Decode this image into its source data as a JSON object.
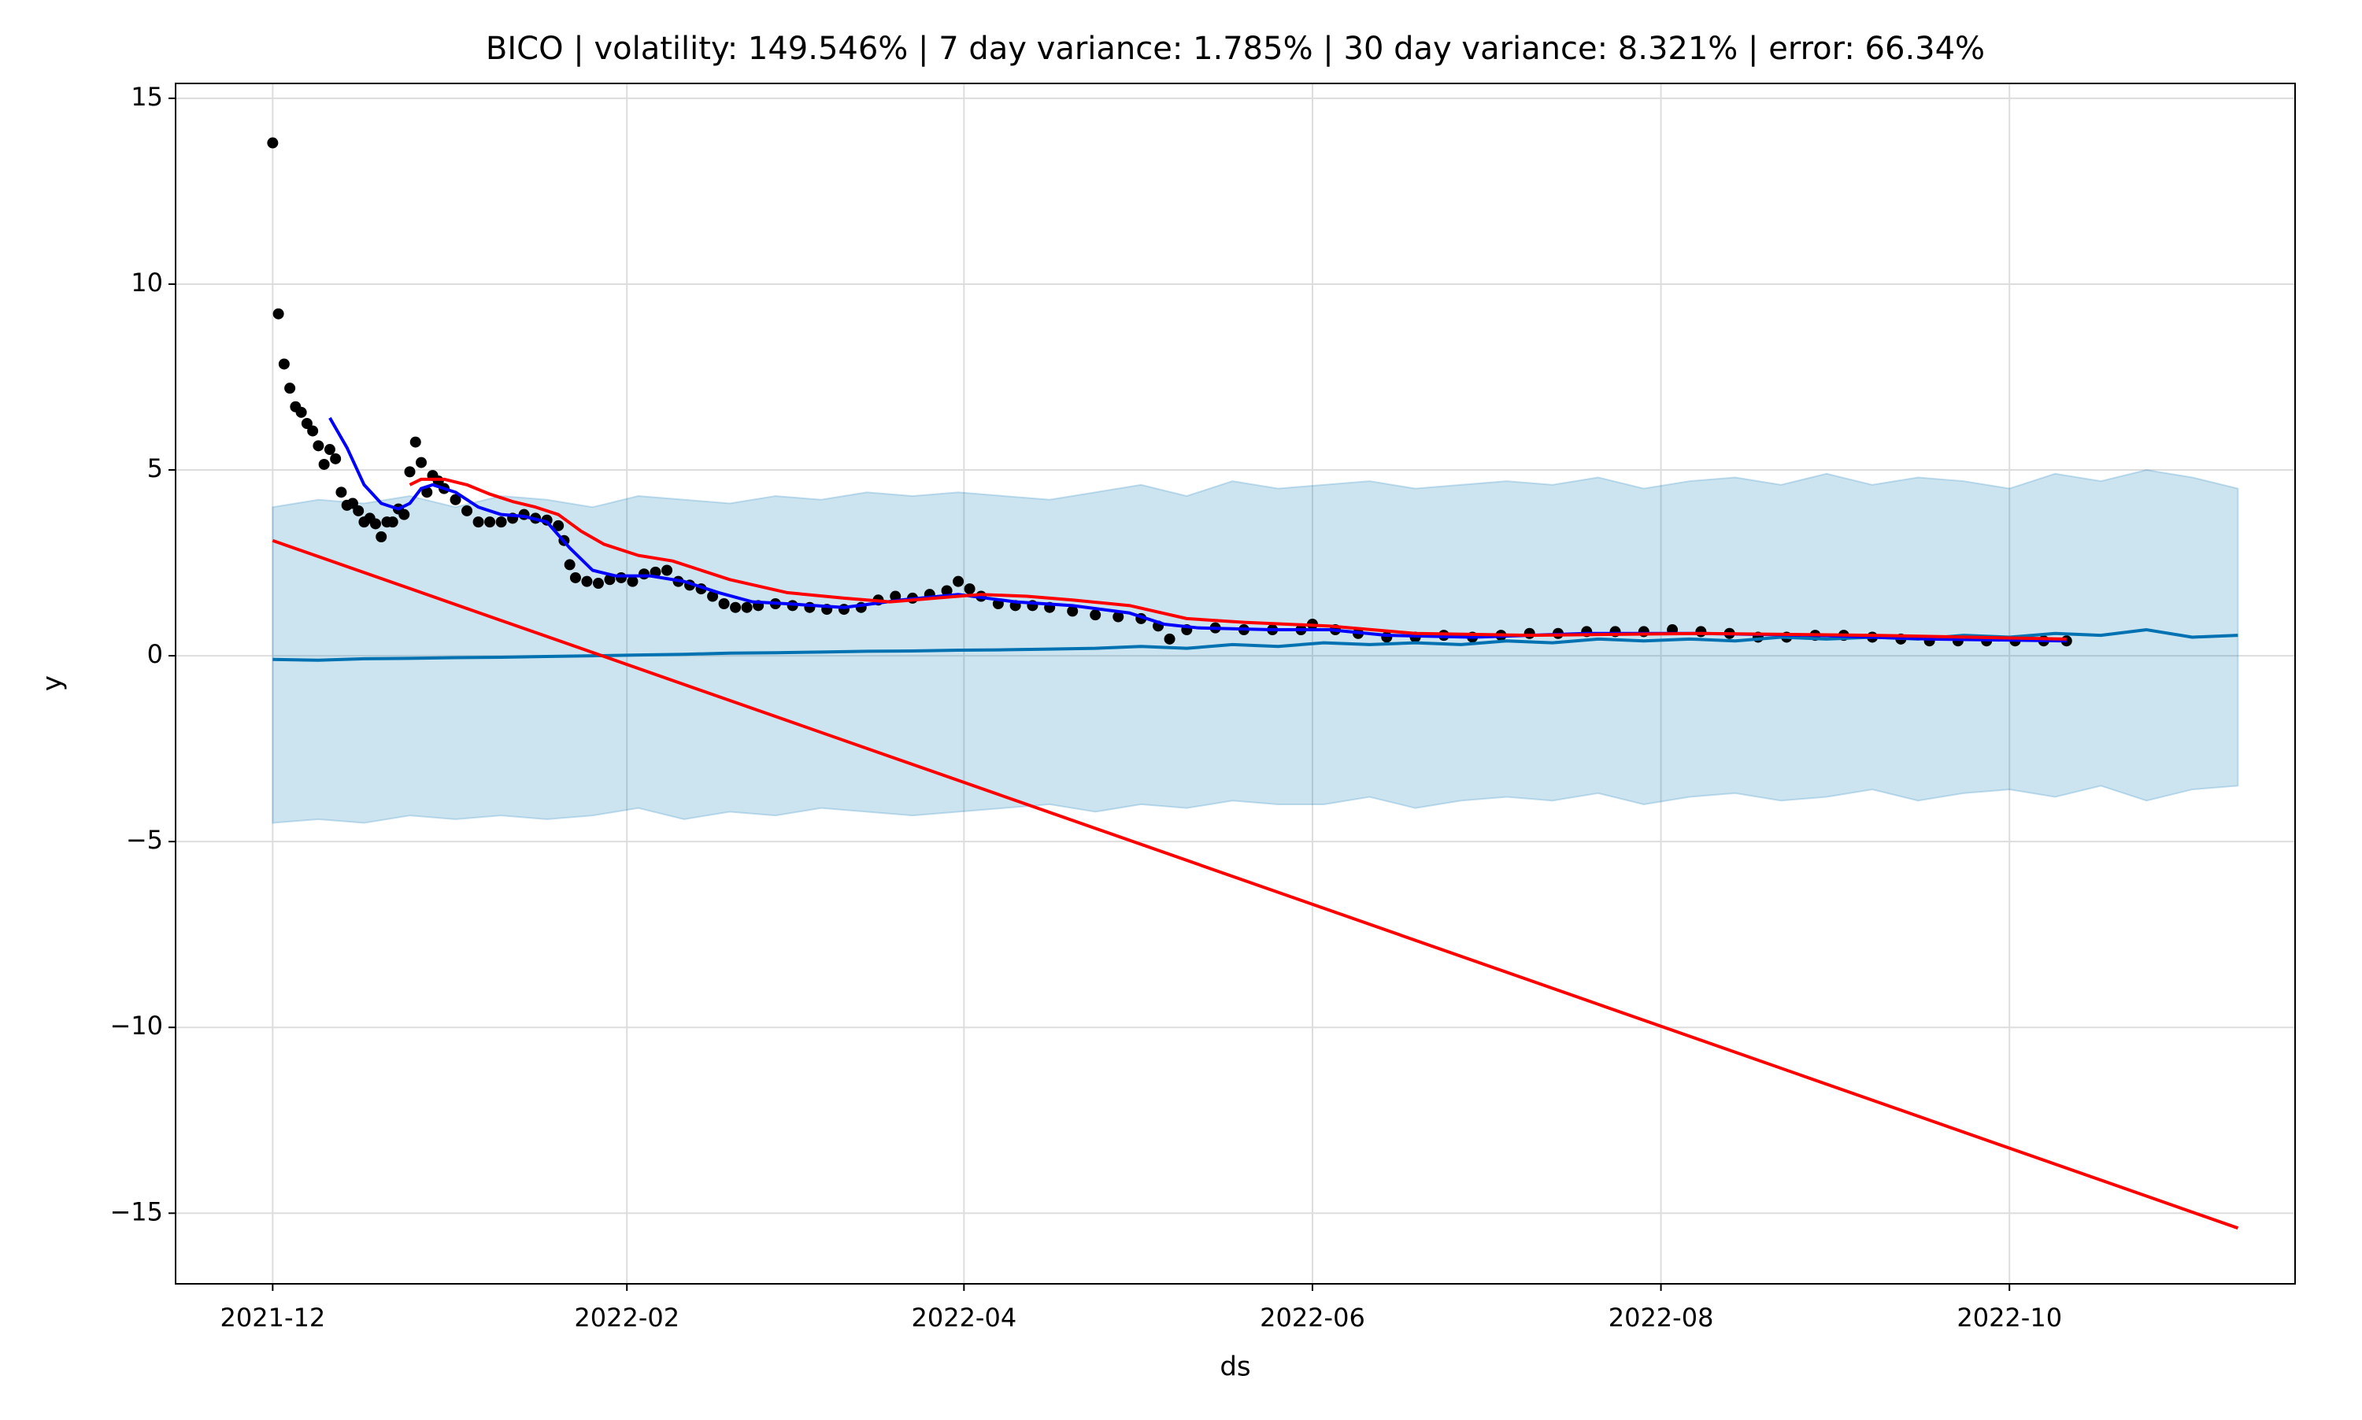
{
  "chart_data": {
    "type": "forecast",
    "title": "BICO | volatility: 149.546% | 7 day variance: 1.785% | 30 day variance: 8.321% | error: 66.34%",
    "x_label": "ds",
    "y_label": "y",
    "xlim": [
      -17,
      354
    ],
    "ylim": [
      -16.9,
      15.4
    ],
    "xticks": [
      {
        "value": 0,
        "label": "2021-12"
      },
      {
        "value": 62,
        "label": "2022-02"
      },
      {
        "value": 121,
        "label": "2022-04"
      },
      {
        "value": 182,
        "label": "2022-06"
      },
      {
        "value": 243,
        "label": "2022-08"
      },
      {
        "value": 304,
        "label": "2022-10"
      }
    ],
    "yticks": [
      {
        "value": -15,
        "label": "−15"
      },
      {
        "value": -10,
        "label": "−10"
      },
      {
        "value": -5,
        "label": "−5"
      },
      0,
      5,
      10,
      15
    ],
    "grid": true,
    "series": [
      {
        "type": "band",
        "color": "#0072B2",
        "x": [
          0,
          8,
          16,
          24,
          32,
          40,
          48,
          56,
          64,
          72,
          80,
          88,
          96,
          104,
          112,
          120,
          128,
          136,
          144,
          152,
          160,
          168,
          176,
          184,
          192,
          200,
          208,
          216,
          224,
          232,
          240,
          248,
          256,
          264,
          272,
          280,
          288,
          296,
          304,
          312,
          320,
          328,
          336,
          344
        ],
        "lower": [
          -4.5,
          -4.4,
          -4.5,
          -4.3,
          -4.4,
          -4.3,
          -4.4,
          -4.3,
          -4.1,
          -4.4,
          -4.2,
          -4.3,
          -4.1,
          -4.2,
          -4.3,
          -4.2,
          -4.1,
          -4.0,
          -4.2,
          -4.0,
          -4.1,
          -3.9,
          -4.0,
          -4.0,
          -3.8,
          -4.1,
          -3.9,
          -3.8,
          -3.9,
          -3.7,
          -4.0,
          -3.8,
          -3.7,
          -3.9,
          -3.8,
          -3.6,
          -3.9,
          -3.7,
          -3.6,
          -3.8,
          -3.5,
          -3.9,
          -3.6,
          -3.5
        ],
        "upper": [
          4.0,
          4.2,
          4.1,
          4.3,
          4.0,
          4.3,
          4.2,
          4.0,
          4.3,
          4.2,
          4.1,
          4.3,
          4.2,
          4.4,
          4.3,
          4.4,
          4.3,
          4.2,
          4.4,
          4.6,
          4.3,
          4.7,
          4.5,
          4.6,
          4.7,
          4.5,
          4.6,
          4.7,
          4.6,
          4.8,
          4.5,
          4.7,
          4.8,
          4.6,
          4.9,
          4.6,
          4.8,
          4.7,
          4.5,
          4.9,
          4.7,
          5.0,
          4.8,
          4.5
        ]
      },
      {
        "type": "line",
        "color": "#0072B2",
        "x": [
          0,
          8,
          16,
          24,
          32,
          40,
          48,
          56,
          64,
          72,
          80,
          88,
          96,
          104,
          112,
          120,
          128,
          136,
          144,
          152,
          160,
          168,
          176,
          184,
          192,
          200,
          208,
          216,
          224,
          232,
          240,
          248,
          256,
          264,
          272,
          280,
          288,
          296,
          304,
          312,
          320,
          328,
          336,
          344
        ],
        "values": [
          -0.1,
          -0.12,
          -0.08,
          -0.07,
          -0.05,
          -0.04,
          -0.02,
          0.0,
          0.02,
          0.04,
          0.07,
          0.08,
          0.1,
          0.12,
          0.13,
          0.15,
          0.16,
          0.18,
          0.2,
          0.25,
          0.2,
          0.3,
          0.25,
          0.35,
          0.3,
          0.35,
          0.3,
          0.4,
          0.35,
          0.45,
          0.4,
          0.45,
          0.4,
          0.5,
          0.45,
          0.5,
          0.45,
          0.55,
          0.5,
          0.6,
          0.55,
          0.7,
          0.5,
          0.55
        ]
      },
      {
        "type": "scatter",
        "color": "#000000",
        "x": [
          0,
          1,
          2,
          3,
          4,
          5,
          6,
          7,
          8,
          9,
          10,
          11,
          12,
          13,
          14,
          15,
          16,
          17,
          18,
          19,
          20,
          21,
          22,
          23,
          24,
          25,
          26,
          27,
          28,
          29,
          30,
          32,
          34,
          36,
          38,
          40,
          42,
          44,
          46,
          48,
          50,
          51,
          52,
          53,
          55,
          57,
          59,
          61,
          63,
          65,
          67,
          69,
          71,
          73,
          75,
          77,
          79,
          81,
          83,
          85,
          88,
          91,
          94,
          97,
          100,
          103,
          106,
          109,
          112,
          115,
          118,
          120,
          122,
          124,
          127,
          130,
          133,
          136,
          140,
          144,
          148,
          152,
          155,
          157,
          160,
          165,
          170,
          175,
          180,
          182,
          186,
          190,
          195,
          200,
          205,
          210,
          215,
          220,
          225,
          230,
          235,
          240,
          245,
          250,
          255,
          260,
          265,
          270,
          275,
          280,
          285,
          290,
          295,
          300,
          305,
          310,
          314
        ],
        "values": [
          13.8,
          9.2,
          7.85,
          7.2,
          6.7,
          6.55,
          6.25,
          6.05,
          5.65,
          5.15,
          5.55,
          5.3,
          4.4,
          4.05,
          4.1,
          3.9,
          3.6,
          3.7,
          3.55,
          3.2,
          3.6,
          3.6,
          3.95,
          3.8,
          4.95,
          5.75,
          5.2,
          4.4,
          4.85,
          4.7,
          4.5,
          4.2,
          3.9,
          3.6,
          3.6,
          3.6,
          3.7,
          3.8,
          3.7,
          3.65,
          3.5,
          3.1,
          2.45,
          2.1,
          2.0,
          1.95,
          2.05,
          2.1,
          2.0,
          2.2,
          2.25,
          2.3,
          2.0,
          1.9,
          1.8,
          1.6,
          1.4,
          1.3,
          1.3,
          1.35,
          1.4,
          1.35,
          1.3,
          1.25,
          1.25,
          1.3,
          1.5,
          1.6,
          1.55,
          1.65,
          1.75,
          2.0,
          1.8,
          1.6,
          1.4,
          1.35,
          1.35,
          1.3,
          1.2,
          1.1,
          1.05,
          1.0,
          0.8,
          0.45,
          0.7,
          0.75,
          0.7,
          0.7,
          0.7,
          0.85,
          0.7,
          0.6,
          0.5,
          0.5,
          0.55,
          0.5,
          0.55,
          0.6,
          0.6,
          0.65,
          0.65,
          0.65,
          0.7,
          0.65,
          0.6,
          0.5,
          0.5,
          0.55,
          0.55,
          0.5,
          0.45,
          0.4,
          0.4,
          0.4,
          0.4,
          0.4,
          0.4
        ]
      },
      {
        "type": "line",
        "color": "#0000ff",
        "x": [
          10,
          13,
          16,
          19,
          22,
          24,
          26,
          28,
          32,
          36,
          40,
          44,
          48,
          52,
          56,
          60,
          66,
          72,
          78,
          84,
          90,
          100,
          110,
          120,
          130,
          140,
          150,
          156,
          162,
          175,
          185,
          195,
          210,
          230,
          250,
          270,
          290,
          314
        ],
        "values": [
          6.4,
          5.6,
          4.6,
          4.1,
          3.95,
          4.1,
          4.5,
          4.6,
          4.4,
          4.0,
          3.8,
          3.75,
          3.6,
          2.9,
          2.3,
          2.15,
          2.15,
          2.0,
          1.7,
          1.45,
          1.4,
          1.3,
          1.5,
          1.65,
          1.45,
          1.35,
          1.15,
          0.85,
          0.75,
          0.7,
          0.7,
          0.55,
          0.5,
          0.6,
          0.6,
          0.55,
          0.45,
          0.4
        ]
      },
      {
        "type": "line",
        "color": "#ff0000",
        "x": [
          24,
          26,
          30,
          34,
          38,
          42,
          46,
          50,
          54,
          58,
          64,
          70,
          80,
          90,
          100,
          108,
          116,
          124,
          132,
          140,
          150,
          160,
          170,
          185,
          200,
          220,
          250,
          280,
          314
        ],
        "values": [
          4.6,
          4.75,
          4.75,
          4.6,
          4.35,
          4.15,
          4.0,
          3.8,
          3.35,
          3.0,
          2.7,
          2.55,
          2.05,
          1.7,
          1.55,
          1.45,
          1.55,
          1.65,
          1.6,
          1.5,
          1.35,
          1.0,
          0.9,
          0.8,
          0.6,
          0.55,
          0.6,
          0.55,
          0.45
        ]
      },
      {
        "type": "line",
        "color": "#ff0000",
        "x": [
          0,
          344
        ],
        "values": [
          3.1,
          -15.4
        ]
      }
    ]
  }
}
